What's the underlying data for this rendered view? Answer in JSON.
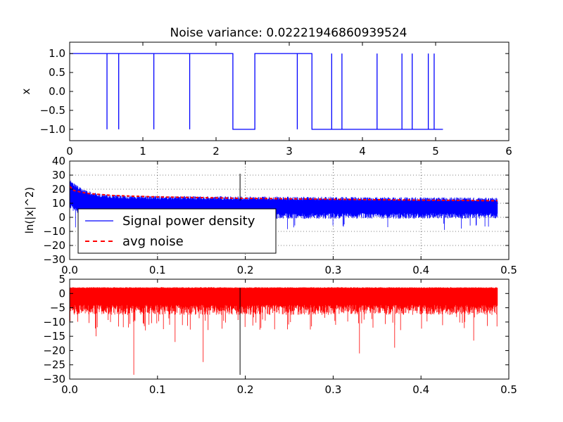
{
  "title": "Noise variance: 0.02221946860939524",
  "chart_data": [
    {
      "type": "line",
      "xlabel": "",
      "ylabel": "x",
      "xlim": [
        0,
        6
      ],
      "ylim": [
        -1.3,
        1.3
      ],
      "xticks": [
        "0",
        "1",
        "2",
        "3",
        "4",
        "5",
        "6"
      ],
      "yticks": [
        "1.0",
        "0.5",
        "0.0",
        "−0.5",
        "−1.0"
      ],
      "grid": false,
      "series": [
        {
          "color": "#0000ff",
          "levels": [
            [
              0,
              0.51,
              1
            ],
            [
              0.51,
              0.51,
              -1
            ],
            [
              0.51,
              0.67,
              1
            ],
            [
              0.67,
              0.67,
              -1
            ],
            [
              0.67,
              1.15,
              1
            ],
            [
              1.15,
              1.15,
              -1
            ],
            [
              1.15,
              1.64,
              1
            ],
            [
              1.64,
              1.64,
              -1
            ],
            [
              1.64,
              2.23,
              1
            ],
            [
              2.23,
              2.53,
              -1
            ],
            [
              2.53,
              3.11,
              1
            ],
            [
              3.11,
              3.11,
              -1
            ],
            [
              3.11,
              3.31,
              1
            ],
            [
              3.31,
              3.58,
              -1
            ],
            [
              3.58,
              3.58,
              1
            ],
            [
              3.58,
              3.72,
              -1
            ],
            [
              3.72,
              3.72,
              1
            ],
            [
              3.72,
              4.2,
              -1
            ],
            [
              4.2,
              4.2,
              1
            ],
            [
              4.2,
              4.54,
              -1
            ],
            [
              4.54,
              4.54,
              1
            ],
            [
              4.54,
              4.68,
              -1
            ],
            [
              4.68,
              4.68,
              1
            ],
            [
              4.68,
              4.9,
              -1
            ],
            [
              4.9,
              4.9,
              1
            ],
            [
              4.9,
              4.98,
              -1
            ],
            [
              4.98,
              4.98,
              1
            ],
            [
              4.98,
              5.1,
              -1
            ]
          ]
        }
      ]
    },
    {
      "type": "line",
      "xlabel": "",
      "ylabel": "ln(|x|^2)",
      "xlim": [
        0,
        0.5
      ],
      "ylim": [
        -30,
        40
      ],
      "xticks": [
        "0.0",
        "0.1",
        "0.2",
        "0.3",
        "0.4",
        "0.5"
      ],
      "yticks": [
        "40",
        "30",
        "20",
        "10",
        "0",
        "−10",
        "−20",
        "−30"
      ],
      "grid": true,
      "legend": "lower-left",
      "series": [
        {
          "name": "Signal power density",
          "color": "#0000ff",
          "style": "solid",
          "envelope": {
            "x_end": 0.487,
            "top_start": 26,
            "top_end": 14,
            "bottom_start": 10,
            "bottom_end": 3,
            "deep_dip": -8
          }
        },
        {
          "name": "avg noise",
          "color": "#ff0000",
          "style": "dashed",
          "x": [
            0,
            0.005,
            0.02,
            0.05,
            0.1,
            0.2,
            0.3,
            0.4,
            0.487
          ],
          "y": [
            22,
            19,
            17,
            15.5,
            14.5,
            13.5,
            12.8,
            12.2,
            11.8
          ]
        }
      ],
      "marker_line": {
        "x": 0.194,
        "y": [
          12,
          31
        ],
        "color": "#000000"
      }
    },
    {
      "type": "line",
      "xlabel": "",
      "ylabel": "",
      "xlim": [
        0,
        0.5
      ],
      "ylim": [
        -30,
        5
      ],
      "xticks": [
        "0.0",
        "0.1",
        "0.2",
        "0.3",
        "0.4",
        "0.5"
      ],
      "yticks": [
        "5",
        "0",
        "−5",
        "−10",
        "−15",
        "−20",
        "−25",
        "−30"
      ],
      "grid": false,
      "series": [
        {
          "color": "#ff0000",
          "envelope": {
            "x_end": 0.487,
            "top": 2.2,
            "band_bottom": -4,
            "spikes": [
              [
                0.073,
                -28.5
              ],
              [
                0.152,
                -24
              ],
              [
                0.33,
                -21
              ],
              [
                0.37,
                -19
              ],
              [
                0.12,
                -17
              ],
              [
                0.46,
                -16.5
              ],
              [
                0.03,
                -15
              ]
            ]
          }
        }
      ],
      "marker_line": {
        "x": 0.194,
        "y": [
          -28.5,
          2
        ],
        "color": "#000000"
      }
    }
  ]
}
